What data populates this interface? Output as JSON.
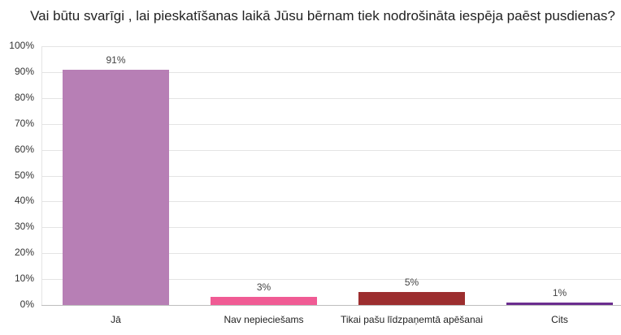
{
  "chart_data": {
    "type": "bar",
    "title": "Vai būtu svarīgi , lai pieskatīšanas laikā Jūsu bērnam tiek nodrošināta iespēja paēst pusdienas?",
    "categories": [
      "Jā",
      "Nav nepieciešams",
      "Tikai pašu līdzpaņemtā apēšanai",
      "Cits"
    ],
    "values": [
      91,
      3,
      5,
      1
    ],
    "value_labels": [
      "91%",
      "3%",
      "5%",
      "1%"
    ],
    "colors": [
      "#b77fb5",
      "#f05b94",
      "#9c2e2f",
      "#6b2d8f"
    ],
    "xlabel": "",
    "ylabel": "",
    "ylim": [
      0,
      100
    ],
    "yticks": [
      "0%",
      "10%",
      "20%",
      "30%",
      "40%",
      "50%",
      "60%",
      "70%",
      "80%",
      "90%",
      "100%"
    ],
    "grid": true,
    "legend": "none"
  }
}
